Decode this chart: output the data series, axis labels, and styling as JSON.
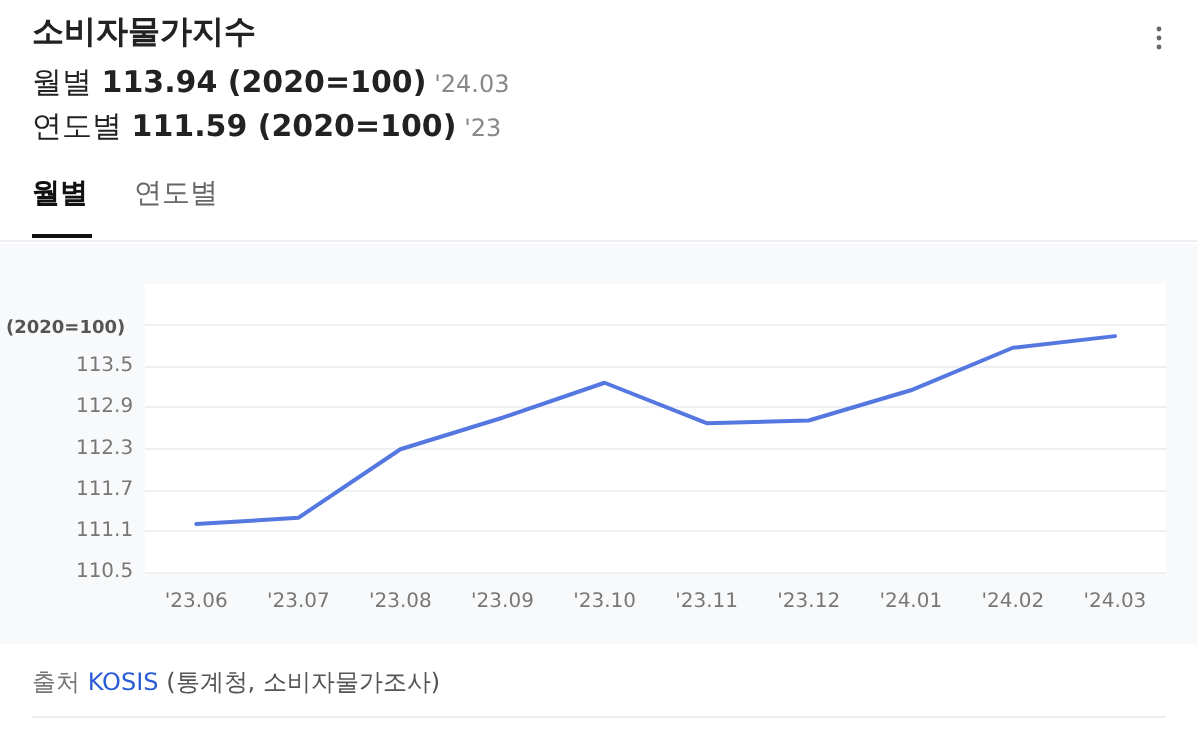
{
  "chart_data": {
    "type": "line",
    "title": "소비자물가지수",
    "subtitle": "월별 113.94 (2020=100) '24.03",
    "annotations": [
      "연도별 111.59 (2020=100) '23",
      "월별",
      "연도별",
      "출처 KOSIS (통계청, 소비자물가조사)"
    ],
    "ylabel": "(2020=100)",
    "categories": [
      "'23.06",
      "'23.07",
      "'23.08",
      "'23.09",
      "'23.10",
      "'23.11",
      "'23.12",
      "'24.01",
      "'24.02",
      "'24.03"
    ],
    "series": [
      {
        "color": "#5577e0",
        "values": [
          111.2,
          111.29,
          112.29,
          112.75,
          113.26,
          112.67,
          112.71,
          113.15,
          113.77,
          113.94
        ]
      }
    ],
    "ylim": [
      110.5,
      114.7
    ],
    "yticks": [
      110.5,
      111.1,
      111.7,
      112.3,
      112.9,
      113.5,
      {
        "value": 114.1,
        "label": null
      }
    ],
    "grid": "y",
    "marker": "none",
    "line_style": "solid"
  }
}
